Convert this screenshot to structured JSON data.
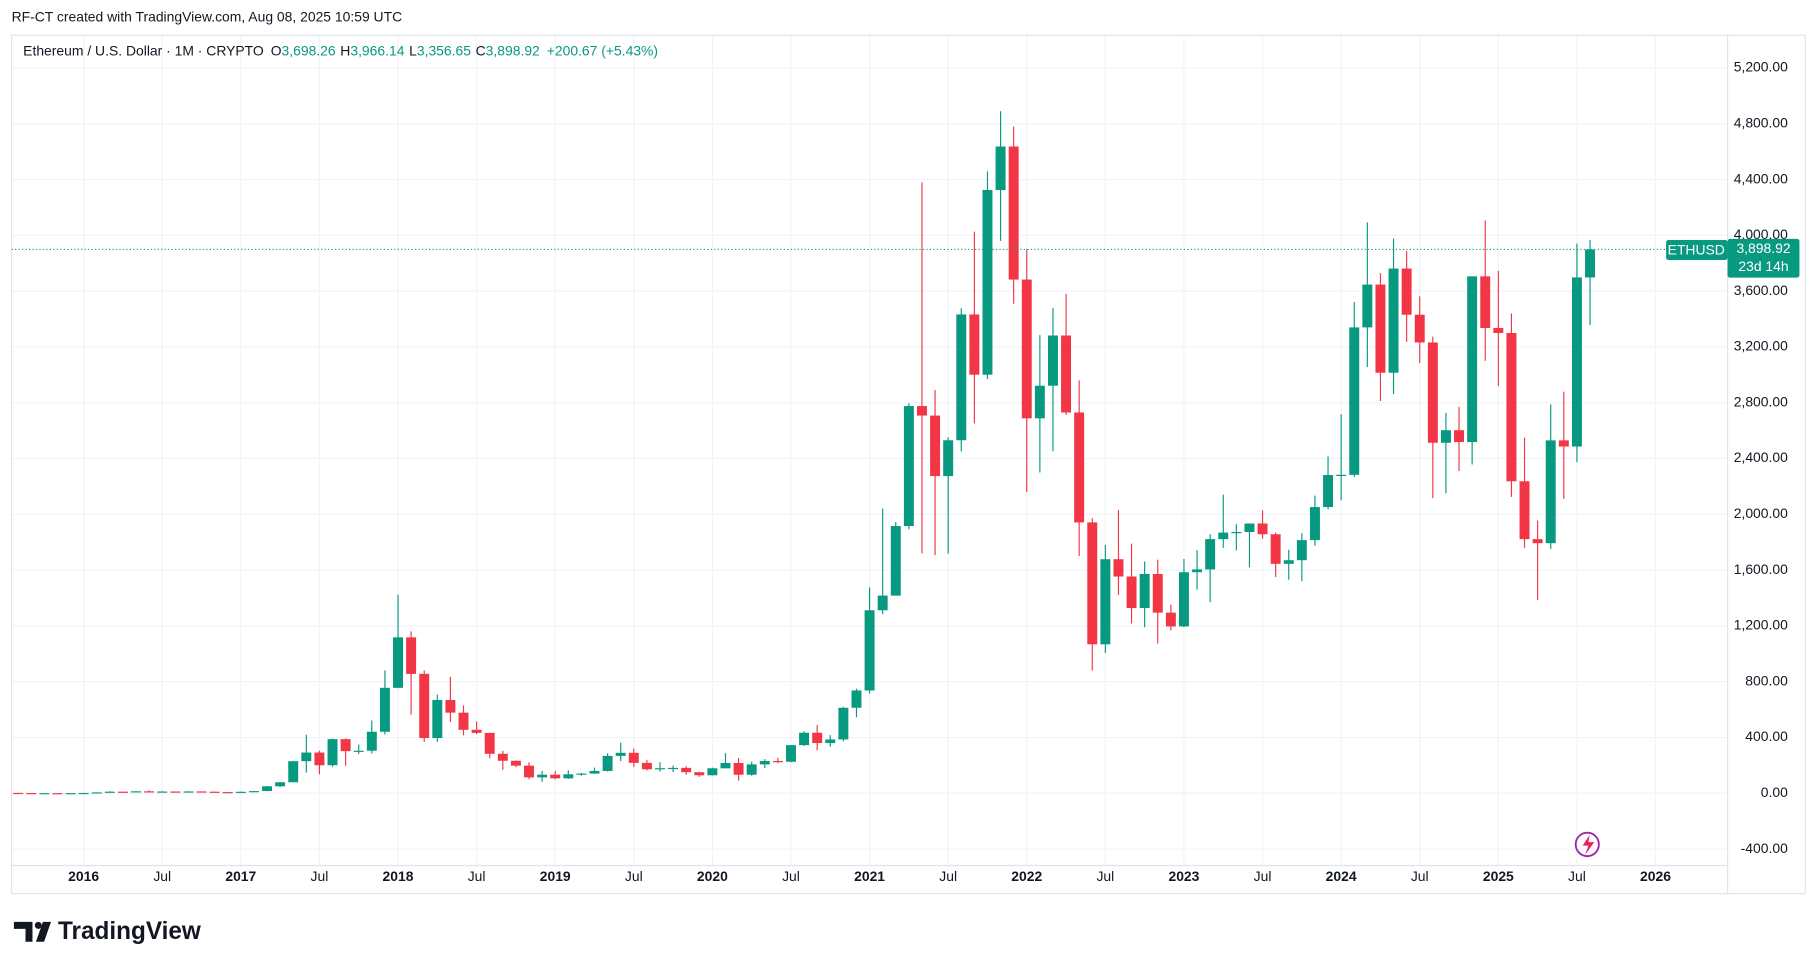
{
  "attribution": "RF-CT created with TradingView.com, Aug 08, 2025 10:59 UTC",
  "header": {
    "symbol": "Ethereum / U.S. Dollar · 1M · CRYPTO",
    "ohlc": [
      {
        "key": "O",
        "value": "3,698.26"
      },
      {
        "key": "H",
        "value": "3,966.14"
      },
      {
        "key": "L",
        "value": "3,356.65"
      },
      {
        "key": "C",
        "value": "3,898.92"
      }
    ],
    "change": "+200.67 (+5.43%)"
  },
  "price_label": {
    "ticker": "ETHUSD",
    "price": "3,898.92",
    "countdown": "23d 14h"
  },
  "footer": {
    "brand": "TradingView"
  },
  "chart_data": {
    "type": "candlestick",
    "up_color": "#089981",
    "down_color": "#f23645",
    "grid": true,
    "x": [
      "2015-08",
      "2015-09",
      "2015-10",
      "2015-11",
      "2015-12",
      "2016-01",
      "2016-02",
      "2016-03",
      "2016-04",
      "2016-05",
      "2016-06",
      "2016-07",
      "2016-08",
      "2016-09",
      "2016-10",
      "2016-11",
      "2016-12",
      "2017-01",
      "2017-02",
      "2017-03",
      "2017-04",
      "2017-05",
      "2017-06",
      "2017-07",
      "2017-08",
      "2017-09",
      "2017-10",
      "2017-11",
      "2017-12",
      "2018-01",
      "2018-02",
      "2018-03",
      "2018-04",
      "2018-05",
      "2018-06",
      "2018-07",
      "2018-08",
      "2018-09",
      "2018-10",
      "2018-11",
      "2018-12",
      "2019-01",
      "2019-02",
      "2019-03",
      "2019-04",
      "2019-05",
      "2019-06",
      "2019-07",
      "2019-08",
      "2019-09",
      "2019-10",
      "2019-11",
      "2019-12",
      "2020-01",
      "2020-02",
      "2020-03",
      "2020-04",
      "2020-05",
      "2020-06",
      "2020-07",
      "2020-08",
      "2020-09",
      "2020-10",
      "2020-11",
      "2020-12",
      "2021-01",
      "2021-02",
      "2021-03",
      "2021-04",
      "2021-05",
      "2021-06",
      "2021-07",
      "2021-08",
      "2021-09",
      "2021-10",
      "2021-11",
      "2021-12",
      "2022-01",
      "2022-02",
      "2022-03",
      "2022-04",
      "2022-05",
      "2022-06",
      "2022-07",
      "2022-08",
      "2022-09",
      "2022-10",
      "2022-11",
      "2022-12",
      "2023-01",
      "2023-02",
      "2023-03",
      "2023-04",
      "2023-05",
      "2023-06",
      "2023-07",
      "2023-08",
      "2023-09",
      "2023-10",
      "2023-11",
      "2023-12",
      "2024-01",
      "2024-02",
      "2024-03",
      "2024-04",
      "2024-05",
      "2024-06",
      "2024-07",
      "2024-08",
      "2024-09",
      "2024-10",
      "2024-11",
      "2024-12",
      "2025-01",
      "2025-02",
      "2025-03",
      "2025-04",
      "2025-05",
      "2025-06",
      "2025-07",
      "2025-08"
    ],
    "open": [
      2.77,
      1.35,
      0.74,
      0.93,
      0.87,
      0.93,
      2.19,
      6.35,
      11.4,
      8.75,
      14.1,
      12.4,
      12.6,
      11.6,
      13.2,
      11.4,
      8.6,
      8,
      10.7,
      15.7,
      50,
      79,
      230,
      292,
      201,
      388,
      302,
      305,
      441,
      756,
      1118,
      856,
      396,
      669,
      578,
      455,
      433,
      283,
      233,
      198,
      114,
      133,
      107,
      136,
      141,
      160,
      268,
      290,
      218,
      172,
      180,
      182,
      151,
      129,
      179,
      217,
      133,
      207,
      231,
      226,
      345,
      434,
      360,
      386,
      613,
      737,
      1312,
      1417,
      1916,
      2776,
      2708,
      2274,
      2531,
      3433,
      3001,
      4325,
      4637,
      3683,
      2688,
      2922,
      3282,
      2730,
      1942,
      1068,
      1678,
      1554,
      1328,
      1572,
      1295,
      1196,
      1585,
      1605,
      1822,
      1869,
      1873,
      1934,
      1857,
      1645,
      1671,
      1815,
      2052,
      2282,
      2283,
      3340,
      3647,
      3015,
      3762,
      3431,
      3232,
      2513,
      2603,
      2518,
      3706,
      3336,
      3300,
      2237,
      1822,
      1793,
      2530,
      2486,
      3698.26
    ],
    "high": [
      2.8,
      1.38,
      1.21,
      1.05,
      0.99,
      2.55,
      6.52,
      15.1,
      12.1,
      14.4,
      21.5,
      14.7,
      12.7,
      14.5,
      13.3,
      11.5,
      9,
      11.5,
      16.6,
      53,
      80,
      232,
      420,
      305,
      392,
      394,
      350,
      522,
      881,
      1424,
      1161,
      880,
      708,
      835,
      629,
      515,
      434,
      304,
      235,
      222,
      160,
      160,
      165,
      146,
      184,
      287,
      362,
      320,
      240,
      223,
      199,
      194,
      153,
      184,
      288,
      253,
      227,
      245,
      254,
      347,
      445,
      489,
      417,
      620,
      750,
      1476,
      2042,
      1944,
      2796,
      4380,
      2891,
      2552,
      3477,
      4027,
      4459,
      4890,
      4780,
      3900,
      3285,
      3480,
      3580,
      2960,
      1972,
      1780,
      2030,
      1790,
      1662,
      1675,
      1352,
      1680,
      1743,
      1857,
      2141,
      1929,
      1928,
      2029,
      1870,
      1746,
      1865,
      2134,
      2415,
      2717,
      3522,
      4093,
      3729,
      3977,
      3888,
      3563,
      3274,
      2727,
      2770,
      3680,
      4107,
      3745,
      3440,
      2550,
      1955,
      2788,
      2879,
      3941,
      3966.14
    ],
    "low": [
      0.42,
      0.58,
      0.41,
      0.8,
      0.83,
      0.93,
      2.19,
      6.35,
      6.9,
      8.75,
      11.1,
      10.2,
      10,
      11.2,
      10.4,
      8,
      6.2,
      7.9,
      10.5,
      15.7,
      44,
      78,
      148,
      136,
      190,
      197,
      281,
      285,
      421,
      753,
      564,
      369,
      367,
      512,
      415,
      425,
      250,
      168,
      187,
      101,
      81,
      100,
      103,
      126,
      140,
      156,
      231,
      188,
      164,
      155,
      152,
      132,
      117,
      127,
      179,
      90,
      126,
      181,
      216,
      222,
      340,
      308,
      333,
      372,
      545,
      715,
      1284,
      1448,
      1893,
      1720,
      1707,
      1718,
      2450,
      2652,
      2970,
      3960,
      3510,
      2159,
      2300,
      2452,
      2712,
      1702,
      880,
      1006,
      1422,
      1218,
      1190,
      1073,
      1167,
      1191,
      1460,
      1370,
      1760,
      1741,
      1620,
      1825,
      1550,
      1531,
      1520,
      1775,
      2035,
      2100,
      2268,
      3056,
      2812,
      2862,
      3236,
      3085,
      2116,
      2150,
      2310,
      2357,
      3100,
      2920,
      2125,
      1760,
      1385,
      1752,
      2111,
      2373,
      3356.65
    ],
    "close": [
      1.35,
      0.74,
      0.93,
      0.87,
      0.93,
      2.19,
      6.35,
      11.4,
      8.75,
      14.1,
      12.4,
      12.6,
      11.6,
      13.2,
      11.4,
      8.6,
      8,
      10.7,
      15.7,
      50,
      79,
      230,
      292,
      201,
      388,
      302,
      305,
      441,
      756,
      1118,
      856,
      396,
      669,
      578,
      455,
      433,
      283,
      233,
      198,
      114,
      133,
      107,
      136,
      141,
      160,
      268,
      290,
      218,
      172,
      180,
      182,
      151,
      129,
      179,
      217,
      133,
      207,
      231,
      226,
      345,
      434,
      360,
      386,
      613,
      737,
      1312,
      1417,
      1916,
      2776,
      2708,
      2274,
      2531,
      3433,
      3001,
      4325,
      4637,
      3683,
      2688,
      2922,
      3282,
      2730,
      1942,
      1068,
      1678,
      1554,
      1328,
      1572,
      1295,
      1196,
      1585,
      1605,
      1822,
      1869,
      1873,
      1934,
      1857,
      1645,
      1671,
      1815,
      2052,
      2282,
      2283,
      3340,
      3647,
      3015,
      3762,
      3431,
      3232,
      2513,
      2603,
      2518,
      3706,
      3336,
      3300,
      2237,
      1822,
      1793,
      2530,
      2486,
      3698.26,
      3898.92
    ],
    "xlim": [
      "2015-08",
      "2026-06"
    ],
    "xticks": [
      {
        "value": "2016-01",
        "label": "2016"
      },
      {
        "value": "2016-07",
        "label": "Jul"
      },
      {
        "value": "2017-01",
        "label": "2017"
      },
      {
        "value": "2017-07",
        "label": "Jul"
      },
      {
        "value": "2018-01",
        "label": "2018"
      },
      {
        "value": "2018-07",
        "label": "Jul"
      },
      {
        "value": "2019-01",
        "label": "2019"
      },
      {
        "value": "2019-07",
        "label": "Jul"
      },
      {
        "value": "2020-01",
        "label": "2020"
      },
      {
        "value": "2020-07",
        "label": "Jul"
      },
      {
        "value": "2021-01",
        "label": "2021"
      },
      {
        "value": "2021-07",
        "label": "Jul"
      },
      {
        "value": "2022-01",
        "label": "2022"
      },
      {
        "value": "2022-07",
        "label": "Jul"
      },
      {
        "value": "2023-01",
        "label": "2023"
      },
      {
        "value": "2023-07",
        "label": "Jul"
      },
      {
        "value": "2024-01",
        "label": "2024"
      },
      {
        "value": "2024-07",
        "label": "Jul"
      },
      {
        "value": "2025-01",
        "label": "2025"
      },
      {
        "value": "2025-07",
        "label": "Jul"
      },
      {
        "value": "2026-01",
        "label": "2026"
      }
    ],
    "ylim": [
      -518,
      5393
    ],
    "yticks": [
      {
        "value": -400,
        "label": "-400.00"
      },
      {
        "value": 0,
        "label": "0.00"
      },
      {
        "value": 400,
        "label": "400.00"
      },
      {
        "value": 800,
        "label": "800.00"
      },
      {
        "value": 1200,
        "label": "1,200.00"
      },
      {
        "value": 1600,
        "label": "1,600.00"
      },
      {
        "value": 2000,
        "label": "2,000.00"
      },
      {
        "value": 2400,
        "label": "2,400.00"
      },
      {
        "value": 2800,
        "label": "2,800.00"
      },
      {
        "value": 3200,
        "label": "3,200.00"
      },
      {
        "value": 3600,
        "label": "3,600.00"
      },
      {
        "value": 4000,
        "label": "4,000.00"
      },
      {
        "value": 4400,
        "label": "4,400.00"
      },
      {
        "value": 4800,
        "label": "4,800.00"
      },
      {
        "value": 5200,
        "label": "5,200.00"
      }
    ]
  }
}
